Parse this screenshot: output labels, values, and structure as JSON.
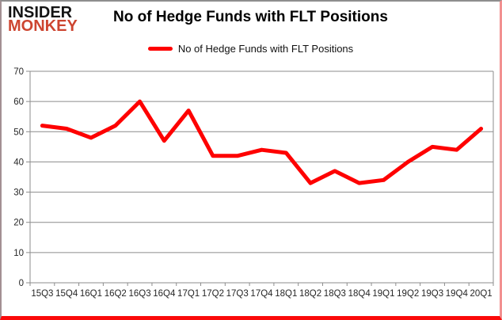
{
  "logo": {
    "line1": "INSIDER",
    "line2": "MONKEY"
  },
  "title": "No of Hedge Funds with FLT Positions",
  "legend": {
    "label": "No of Hedge Funds with FLT Positions"
  },
  "colors": {
    "series": "#fe0000",
    "gridline": "#8c8c8c",
    "axis": "#8c8c8c",
    "tick_text": "#262626",
    "logo_black": "#141414",
    "logo_red": "#cd4530",
    "border_red": "#fb0a0a"
  },
  "chart_data": {
    "type": "line",
    "title": "No of Hedge Funds with FLT Positions",
    "categories": [
      "15Q3",
      "15Q4",
      "16Q1",
      "16Q2",
      "16Q3",
      "16Q4",
      "17Q1",
      "17Q2",
      "17Q3",
      "17Q4",
      "18Q1",
      "18Q2",
      "18Q3",
      "18Q4",
      "19Q1",
      "19Q2",
      "19Q3",
      "19Q4",
      "20Q1"
    ],
    "series": [
      {
        "name": "No of Hedge Funds with FLT Positions",
        "values": [
          52,
          51,
          48,
          52,
          60,
          47,
          57,
          42,
          42,
          44,
          43,
          33,
          37,
          33,
          34,
          40,
          45,
          44,
          51
        ]
      }
    ],
    "xlabel": "",
    "ylabel": "",
    "ylim": [
      0,
      70
    ],
    "yticks": [
      0,
      10,
      20,
      30,
      40,
      50,
      60,
      70
    ],
    "grid": true,
    "legend_position": "top"
  }
}
